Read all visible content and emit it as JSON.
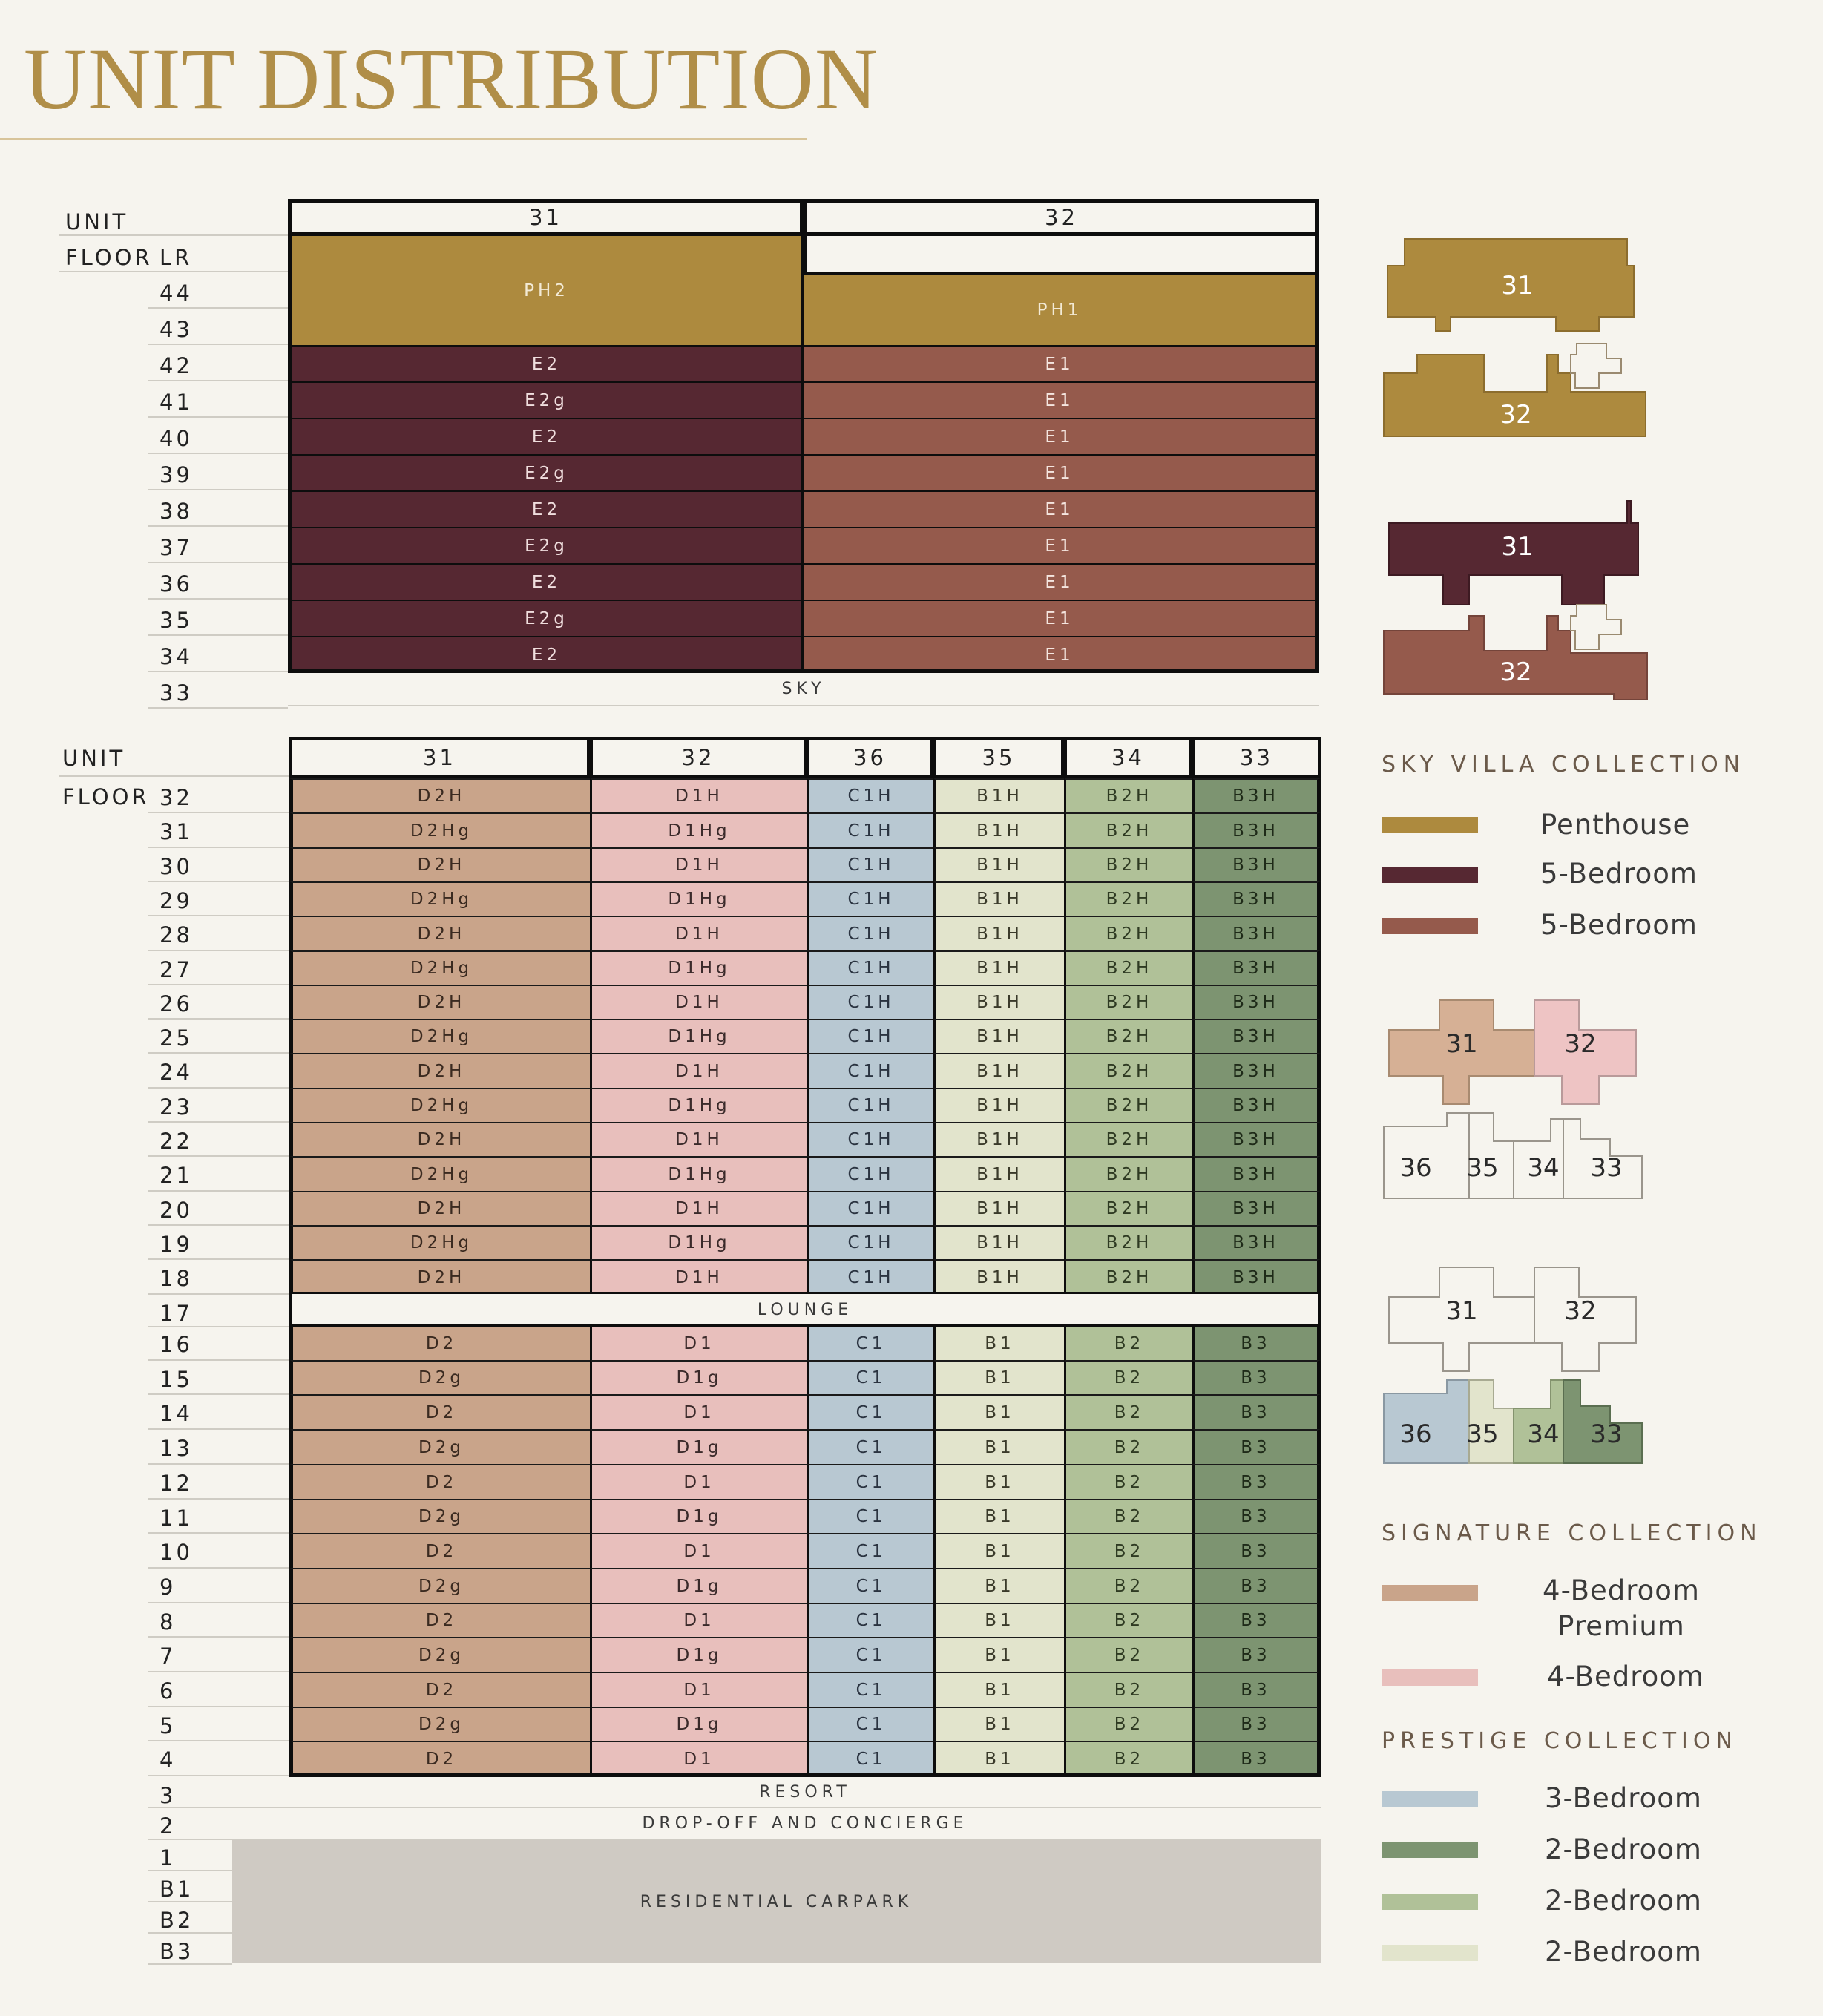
{
  "title": "UNIT DISTRIBUTION",
  "colors": {
    "gold": "#ad8a3e",
    "maroon": "#562832",
    "rust": "#955a4c",
    "tan": "#c9a48a",
    "pink": "#e8bfbc",
    "blue": "#b8c8d2",
    "cream": "#e2e4cc",
    "sage": "#b0c198",
    "green": "#7d9471",
    "carpark": "#cfcac3"
  },
  "upper": {
    "unit_label": "UNIT",
    "floor_label": "FLOOR",
    "lr_label": "LR",
    "units": [
      "31",
      "32"
    ],
    "floors": [
      "44",
      "43",
      "42",
      "41",
      "40",
      "39",
      "38",
      "37",
      "36",
      "35",
      "34",
      "33"
    ],
    "ph": [
      "PH2",
      "PH1"
    ],
    "rows": [
      [
        "E2",
        "E1"
      ],
      [
        "E2g",
        "E1"
      ],
      [
        "E2",
        "E1"
      ],
      [
        "E2g",
        "E1"
      ],
      [
        "E2",
        "E1"
      ],
      [
        "E2g",
        "E1"
      ],
      [
        "E2",
        "E1"
      ],
      [
        "E2g",
        "E1"
      ],
      [
        "E2",
        "E1"
      ]
    ],
    "sky_label": "SKY"
  },
  "lower": {
    "unit_label": "UNIT",
    "floor_label": "FLOOR",
    "units": [
      "31",
      "32",
      "36",
      "35",
      "34",
      "33"
    ],
    "upper_floors": [
      "32",
      "31",
      "30",
      "29",
      "28",
      "27",
      "26",
      "25",
      "24",
      "23",
      "22",
      "21",
      "20",
      "19",
      "18"
    ],
    "upper_rows": [
      [
        "D2H",
        "D1H",
        "C1H",
        "B1H",
        "B2H",
        "B3H"
      ],
      [
        "D2Hg",
        "D1Hg",
        "C1H",
        "B1H",
        "B2H",
        "B3H"
      ],
      [
        "D2H",
        "D1H",
        "C1H",
        "B1H",
        "B2H",
        "B3H"
      ],
      [
        "D2Hg",
        "D1Hg",
        "C1H",
        "B1H",
        "B2H",
        "B3H"
      ],
      [
        "D2H",
        "D1H",
        "C1H",
        "B1H",
        "B2H",
        "B3H"
      ],
      [
        "D2Hg",
        "D1Hg",
        "C1H",
        "B1H",
        "B2H",
        "B3H"
      ],
      [
        "D2H",
        "D1H",
        "C1H",
        "B1H",
        "B2H",
        "B3H"
      ],
      [
        "D2Hg",
        "D1Hg",
        "C1H",
        "B1H",
        "B2H",
        "B3H"
      ],
      [
        "D2H",
        "D1H",
        "C1H",
        "B1H",
        "B2H",
        "B3H"
      ],
      [
        "D2Hg",
        "D1Hg",
        "C1H",
        "B1H",
        "B2H",
        "B3H"
      ],
      [
        "D2H",
        "D1H",
        "C1H",
        "B1H",
        "B2H",
        "B3H"
      ],
      [
        "D2Hg",
        "D1Hg",
        "C1H",
        "B1H",
        "B2H",
        "B3H"
      ],
      [
        "D2H",
        "D1H",
        "C1H",
        "B1H",
        "B2H",
        "B3H"
      ],
      [
        "D2Hg",
        "D1Hg",
        "C1H",
        "B1H",
        "B2H",
        "B3H"
      ],
      [
        "D2H",
        "D1H",
        "C1H",
        "B1H",
        "B2H",
        "B3H"
      ]
    ],
    "lounge_floor": "17",
    "lounge_label": "LOUNGE",
    "lower_floors": [
      "16",
      "15",
      "14",
      "13",
      "12",
      "11",
      "10",
      "9",
      "8",
      "7",
      "6",
      "5",
      "4"
    ],
    "lower_rows": [
      [
        "D2",
        "D1",
        "C1",
        "B1",
        "B2",
        "B3"
      ],
      [
        "D2g",
        "D1g",
        "C1",
        "B1",
        "B2",
        "B3"
      ],
      [
        "D2",
        "D1",
        "C1",
        "B1",
        "B2",
        "B3"
      ],
      [
        "D2g",
        "D1g",
        "C1",
        "B1",
        "B2",
        "B3"
      ],
      [
        "D2",
        "D1",
        "C1",
        "B1",
        "B2",
        "B3"
      ],
      [
        "D2g",
        "D1g",
        "C1",
        "B1",
        "B2",
        "B3"
      ],
      [
        "D2",
        "D1",
        "C1",
        "B1",
        "B2",
        "B3"
      ],
      [
        "D2g",
        "D1g",
        "C1",
        "B1",
        "B2",
        "B3"
      ],
      [
        "D2",
        "D1",
        "C1",
        "B1",
        "B2",
        "B3"
      ],
      [
        "D2g",
        "D1g",
        "C1",
        "B1",
        "B2",
        "B3"
      ],
      [
        "D2",
        "D1",
        "C1",
        "B1",
        "B2",
        "B3"
      ],
      [
        "D2g",
        "D1g",
        "C1",
        "B1",
        "B2",
        "B3"
      ],
      [
        "D2",
        "D1",
        "C1",
        "B1",
        "B2",
        "B3"
      ]
    ],
    "resort_floor": "3",
    "resort_label": "RESORT",
    "dropoff_floor": "2",
    "dropoff_label": "DROP-OFF AND CONCIERGE",
    "carpark_floors": [
      "1",
      "B1",
      "B2",
      "B3"
    ],
    "carpark_label": "RESIDENTIAL CARPARK"
  },
  "legend": {
    "sky_villa": {
      "title": "SKY VILLA COLLECTION",
      "items": [
        {
          "label": "Penthouse",
          "color": "#ad8a3e"
        },
        {
          "label": "5-Bedroom",
          "color": "#562832"
        },
        {
          "label": "5-Bedroom",
          "color": "#955a4c"
        }
      ]
    },
    "signature": {
      "title": "SIGNATURE COLLECTION",
      "items": [
        {
          "label": "4-Bedroom",
          "label2": "Premium",
          "color": "#c9a48a"
        },
        {
          "label": "4-Bedroom",
          "color": "#e8bfbc"
        }
      ]
    },
    "prestige": {
      "title": "PRESTIGE COLLECTION",
      "items": [
        {
          "label": "3-Bedroom",
          "color": "#b8c8d2"
        },
        {
          "label": "2-Bedroom",
          "color": "#7d9471"
        },
        {
          "label": "2-Bedroom",
          "color": "#b0c198"
        },
        {
          "label": "2-Bedroom",
          "color": "#e2e4cc"
        }
      ]
    }
  },
  "plans": {
    "sky_top": {
      "u31": "31",
      "u32": "32"
    },
    "sky_bottom": {
      "u31": "31",
      "u32": "32"
    },
    "signature": {
      "u31": "31",
      "u32": "32",
      "u36": "36",
      "u35": "35",
      "u34": "34",
      "u33": "33"
    },
    "prestige": {
      "u31": "31",
      "u32": "32",
      "u36": "36",
      "u35": "35",
      "u34": "34",
      "u33": "33"
    }
  }
}
